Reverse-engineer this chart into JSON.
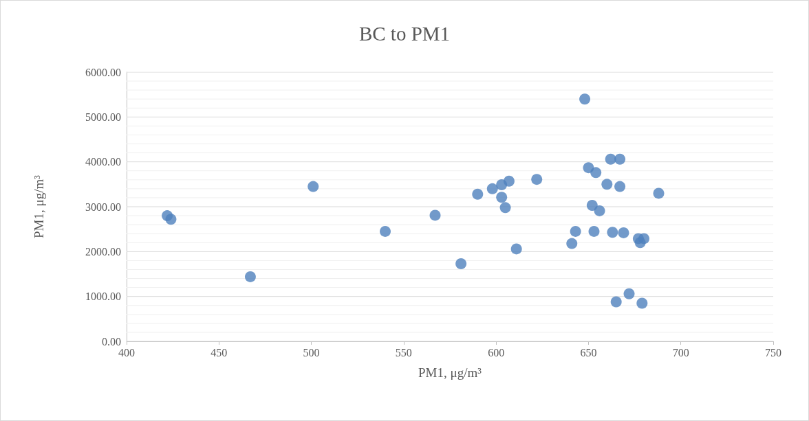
{
  "chart_data": {
    "type": "scatter",
    "title": "BC to PM1",
    "xlabel": "PM1, μg/m³",
    "ylabel": "PM1, μg/m³",
    "x": [
      422,
      424,
      467,
      501,
      540,
      567,
      581,
      590,
      598,
      603,
      603,
      605,
      607,
      611,
      622,
      641,
      643,
      648,
      650,
      652,
      653,
      654,
      656,
      660,
      662,
      663,
      665,
      667,
      667,
      669,
      672,
      677,
      678,
      679,
      680,
      688
    ],
    "series": [
      {
        "color": "#4f81bd",
        "values": [
          2800,
          2720,
          1440,
          3450,
          2450,
          2810,
          1730,
          3280,
          3400,
          3490,
          3210,
          2980,
          3570,
          2060,
          3610,
          2180,
          2450,
          5400,
          3870,
          3030,
          2450,
          3760,
          2910,
          3500,
          4060,
          2430,
          880,
          4060,
          3450,
          2420,
          1060,
          2290,
          2200,
          850,
          2290,
          3300
        ]
      }
    ],
    "marker": "circle",
    "grid": "y",
    "xlim": [
      400,
      750
    ],
    "xticks": [
      400,
      450,
      500,
      550,
      600,
      650,
      700,
      750
    ],
    "ylim": [
      0,
      6000
    ],
    "yticks": [
      {
        "value": 0,
        "label": "0.00"
      },
      {
        "value": 200,
        "label": null
      },
      {
        "value": 400,
        "label": null
      },
      {
        "value": 600,
        "label": null
      },
      {
        "value": 800,
        "label": null
      },
      {
        "value": 1000,
        "label": "1000.00"
      },
      {
        "value": 1200,
        "label": null
      },
      {
        "value": 1400,
        "label": null
      },
      {
        "value": 1600,
        "label": null
      },
      {
        "value": 1800,
        "label": null
      },
      {
        "value": 2000,
        "label": "2000.00"
      },
      {
        "value": 2200,
        "label": null
      },
      {
        "value": 2400,
        "label": null
      },
      {
        "value": 2600,
        "label": null
      },
      {
        "value": 2800,
        "label": null
      },
      {
        "value": 3000,
        "label": "3000.00"
      },
      {
        "value": 3200,
        "label": null
      },
      {
        "value": 3400,
        "label": null
      },
      {
        "value": 3600,
        "label": null
      },
      {
        "value": 3800,
        "label": null
      },
      {
        "value": 4000,
        "label": "4000.00"
      },
      {
        "value": 4200,
        "label": null
      },
      {
        "value": 4400,
        "label": null
      },
      {
        "value": 4600,
        "label": null
      },
      {
        "value": 4800,
        "label": null
      },
      {
        "value": 5000,
        "label": "5000.00"
      },
      {
        "value": 5200,
        "label": null
      },
      {
        "value": 5400,
        "label": null
      },
      {
        "value": 5600,
        "label": null
      },
      {
        "value": 5800,
        "label": null
      },
      {
        "value": 6000,
        "label": "6000.00"
      }
    ]
  }
}
